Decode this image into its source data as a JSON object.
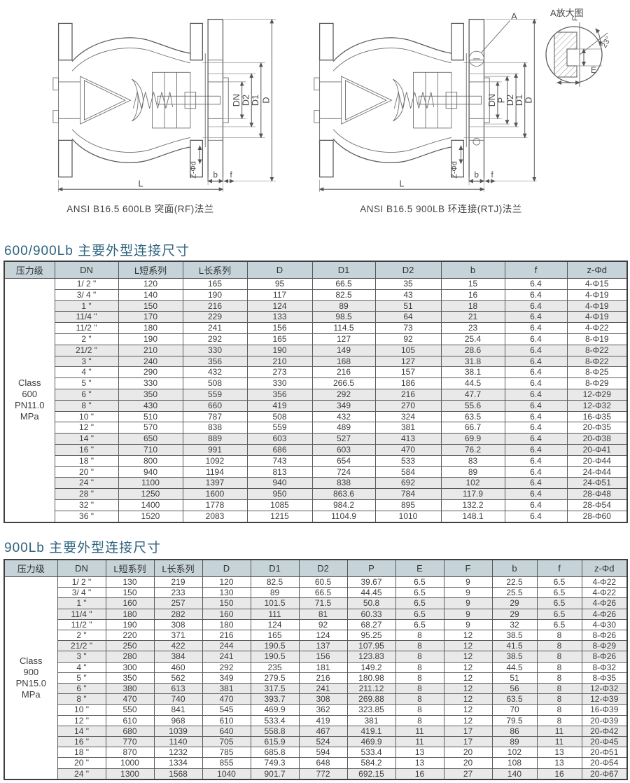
{
  "drawings": {
    "left_caption": "ANSI B16.5  600LB  突面(RF)法兰",
    "right_caption": "ANSI B16.5  900LB 环连接(RTJ)法兰",
    "dims_left": {
      "dn": "DN",
      "d2": "D2",
      "d1": "D1",
      "d": "D",
      "l": "L",
      "zphid": "Z-Φd",
      "b": "b",
      "f": "f"
    },
    "dims_right": {
      "dn": "DN",
      "p": "P",
      "d2": "D2",
      "d1": "D1",
      "d": "D",
      "l": "L",
      "zphid": "Z-Φd",
      "b": "b",
      "f": "f",
      "callout": "A"
    },
    "detail": {
      "title": "A放大图",
      "f_label": "F",
      "angle_label": "23°",
      "e_label": "E"
    }
  },
  "table1": {
    "title": "600/900Lb  主要外型连接尺寸",
    "headers": [
      "压力级",
      "DN",
      "L短系列",
      "L长系列",
      "D",
      "D1",
      "D2",
      "b",
      "f",
      "z-Φd"
    ],
    "pressure_class": [
      "Class",
      "600",
      "PN11.0",
      "MPa"
    ],
    "rows": [
      [
        "1/ 2 \"",
        "120",
        "165",
        "95",
        "66.5",
        "35",
        "15",
        "6.4",
        "4-Φ15"
      ],
      [
        "3/ 4 \"",
        "140",
        "190",
        "117",
        "82.5",
        "43",
        "16",
        "6.4",
        "4-Φ19"
      ],
      [
        "1 \"",
        "150",
        "216",
        "124",
        "89",
        "51",
        "18",
        "6.4",
        "4-Φ19"
      ],
      [
        "11/4 \"",
        "170",
        "229",
        "133",
        "98.5",
        "64",
        "21",
        "6.4",
        "4-Φ19"
      ],
      [
        "11/2 \"",
        "180",
        "241",
        "156",
        "114.5",
        "73",
        "23",
        "6.4",
        "4-Φ22"
      ],
      [
        "2 \"",
        "190",
        "292",
        "165",
        "127",
        "92",
        "25.4",
        "6.4",
        "8-Φ19"
      ],
      [
        "21/2 \"",
        "210",
        "330",
        "190",
        "149",
        "105",
        "28.6",
        "6.4",
        "8-Φ22"
      ],
      [
        "3 \"",
        "240",
        "356",
        "210",
        "168",
        "127",
        "31.8",
        "6.4",
        "8-Φ22"
      ],
      [
        "4 \"",
        "290",
        "432",
        "273",
        "216",
        "157",
        "38.1",
        "6.4",
        "8-Φ25"
      ],
      [
        "5 \"",
        "330",
        "508",
        "330",
        "266.5",
        "186",
        "44.5",
        "6.4",
        "8-Φ29"
      ],
      [
        "6 \"",
        "350",
        "559",
        "356",
        "292",
        "216",
        "47.7",
        "6.4",
        "12-Φ29"
      ],
      [
        "8 \"",
        "430",
        "660",
        "419",
        "349",
        "270",
        "55.6",
        "6.4",
        "12-Φ32"
      ],
      [
        "10 \"",
        "510",
        "787",
        "508",
        "432",
        "324",
        "63.5",
        "6.4",
        "16-Φ35"
      ],
      [
        "12 \"",
        "570",
        "838",
        "559",
        "489",
        "381",
        "66.7",
        "6.4",
        "20-Φ35"
      ],
      [
        "14 \"",
        "650",
        "889",
        "603",
        "527",
        "413",
        "69.9",
        "6.4",
        "20-Φ38"
      ],
      [
        "16 \"",
        "710",
        "991",
        "686",
        "603",
        "470",
        "76.2",
        "6.4",
        "20-Φ41"
      ],
      [
        "18 \"",
        "800",
        "1092",
        "743",
        "654",
        "533",
        "83",
        "6.4",
        "20-Φ44"
      ],
      [
        "20 \"",
        "940",
        "1194",
        "813",
        "724",
        "584",
        "89",
        "6.4",
        "24-Φ44"
      ],
      [
        "24 \"",
        "1100",
        "1397",
        "940",
        "838",
        "692",
        "102",
        "6.4",
        "24-Φ51"
      ],
      [
        "28 \"",
        "1250",
        "1600",
        "950",
        "863.6",
        "784",
        "117.9",
        "6.4",
        "28-Φ48"
      ],
      [
        "32 \"",
        "1400",
        "1778",
        "1085",
        "984.2",
        "895",
        "132.2",
        "6.4",
        "28-Φ54"
      ],
      [
        "36 \"",
        "1520",
        "2083",
        "1215",
        "1104.9",
        "1010",
        "148.1",
        "6.4",
        "28-Φ60"
      ]
    ]
  },
  "table2": {
    "title": "900Lb  主要外型连接尺寸",
    "headers": [
      "压力级",
      "DN",
      "L短系列",
      "L长系列",
      "D",
      "D1",
      "D2",
      "P",
      "E",
      "F",
      "b",
      "f",
      "z-Φd"
    ],
    "pressure_class": [
      "Class",
      "900",
      "PN15.0",
      "MPa"
    ],
    "rows": [
      [
        "1/ 2 \"",
        "130",
        "219",
        "120",
        "82.5",
        "60.5",
        "39.67",
        "6.5",
        "9",
        "22.5",
        "6.5",
        "4-Φ22"
      ],
      [
        "3/ 4 \"",
        "150",
        "233",
        "130",
        "89",
        "66.5",
        "44.45",
        "6.5",
        "9",
        "25.5",
        "6.5",
        "4-Φ22"
      ],
      [
        "1 \"",
        "160",
        "257",
        "150",
        "101.5",
        "71.5",
        "50.8",
        "6.5",
        "9",
        "29",
        "6.5",
        "4-Φ26"
      ],
      [
        "11/4 \"",
        "180",
        "282",
        "160",
        "111",
        "81",
        "60.33",
        "6.5",
        "9",
        "29",
        "6.5",
        "4-Φ26"
      ],
      [
        "11/2 \"",
        "190",
        "308",
        "180",
        "124",
        "92",
        "68.27",
        "6.5",
        "9",
        "32",
        "6.5",
        "4-Φ30"
      ],
      [
        "2 \"",
        "220",
        "371",
        "216",
        "165",
        "124",
        "95.25",
        "8",
        "12",
        "38.5",
        "8",
        "8-Φ26"
      ],
      [
        "21/2 \"",
        "250",
        "422",
        "244",
        "190.5",
        "137",
        "107.95",
        "8",
        "12",
        "41.5",
        "8",
        "8-Φ29"
      ],
      [
        "3 \"",
        "280",
        "384",
        "241",
        "190.5",
        "156",
        "123.83",
        "8",
        "12",
        "38.5",
        "8",
        "8-Φ26"
      ],
      [
        "4 \"",
        "300",
        "460",
        "292",
        "235",
        "181",
        "149.2",
        "8",
        "12",
        "44.5",
        "8",
        "8-Φ32"
      ],
      [
        "5 \"",
        "350",
        "562",
        "349",
        "279.5",
        "216",
        "180.98",
        "8",
        "12",
        "51",
        "8",
        "8-Φ35"
      ],
      [
        "6 \"",
        "380",
        "613",
        "381",
        "317.5",
        "241",
        "211.12",
        "8",
        "12",
        "56",
        "8",
        "12-Φ32"
      ],
      [
        "8 \"",
        "470",
        "740",
        "470",
        "393.7",
        "308",
        "269.88",
        "8",
        "12",
        "63.5",
        "8",
        "12-Φ39"
      ],
      [
        "10 \"",
        "550",
        "841",
        "545",
        "469.9",
        "362",
        "323.85",
        "8",
        "12",
        "70",
        "8",
        "16-Φ39"
      ],
      [
        "12 \"",
        "610",
        "968",
        "610",
        "533.4",
        "419",
        "381",
        "8",
        "12",
        "79.5",
        "8",
        "20-Φ39"
      ],
      [
        "14 \"",
        "680",
        "1039",
        "640",
        "558.8",
        "467",
        "419.1",
        "11",
        "17",
        "86",
        "11",
        "20-Φ42"
      ],
      [
        "16 \"",
        "770",
        "1140",
        "705",
        "615.9",
        "524",
        "469.9",
        "11",
        "17",
        "89",
        "11",
        "20-Φ45"
      ],
      [
        "18 \"",
        "870",
        "1232",
        "785",
        "685.8",
        "594",
        "533.4",
        "13",
        "20",
        "102",
        "13",
        "20-Φ51"
      ],
      [
        "20 \"",
        "1000",
        "1334",
        "855",
        "749.3",
        "648",
        "584.2",
        "13",
        "20",
        "108",
        "13",
        "20-Φ54"
      ],
      [
        "24 \"",
        "1300",
        "1568",
        "1040",
        "901.7",
        "772",
        "692.15",
        "16",
        "27",
        "140",
        "16",
        "20-Φ67"
      ]
    ]
  }
}
